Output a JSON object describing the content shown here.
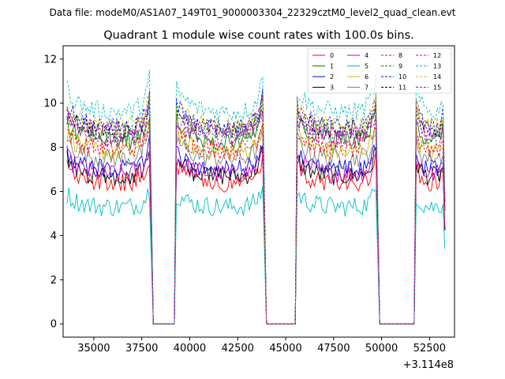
{
  "header": {
    "file_label": "Data file: modeM0/AS1A07_149T01_9000003304_22329cztM0_level2_quad_clean.evt"
  },
  "chart_data": {
    "type": "line",
    "title": "Quadrant 1 module wise count rates with 100.0s bins.",
    "xlabel": "",
    "ylabel": "",
    "x_offset_label": "+3.114e8",
    "xlim": [
      33400,
      53800
    ],
    "ylim": [
      -0.6,
      12.6
    ],
    "x_ticks": [
      35000,
      37500,
      40000,
      42500,
      45000,
      47500,
      50000,
      52500
    ],
    "x_tick_labels": [
      "35000",
      "37500",
      "40000",
      "42500",
      "45000",
      "47500",
      "50000",
      "52500"
    ],
    "y_ticks": [
      0,
      2,
      4,
      6,
      8,
      10,
      12
    ],
    "y_tick_labels": [
      "0",
      "2",
      "4",
      "6",
      "8",
      "10",
      "12"
    ],
    "grid": false,
    "legend_position": "top-right",
    "bin_size_s": 100,
    "segments": [
      {
        "start": 33600,
        "end": 37900
      },
      {
        "start": 39300,
        "end": 43800
      },
      {
        "start": 45600,
        "end": 49700
      },
      {
        "start": 51800,
        "end": 53300
      }
    ],
    "gaps": [
      {
        "start": 38200,
        "end": 39200
      },
      {
        "start": 44000,
        "end": 45500
      },
      {
        "start": 49800,
        "end": 51700
      }
    ],
    "series": [
      {
        "name": "0",
        "color": "#ff0000",
        "style": "solid",
        "mean_level": 6.4
      },
      {
        "name": "1",
        "color": "#008000",
        "style": "solid",
        "mean_level": 8.3
      },
      {
        "name": "2",
        "color": "#0000ff",
        "style": "solid",
        "mean_level": 7.0
      },
      {
        "name": "3",
        "color": "#000000",
        "style": "solid",
        "mean_level": 6.7
      },
      {
        "name": "4",
        "color": "#bf00bf",
        "style": "solid",
        "mean_level": 6.8
      },
      {
        "name": "5",
        "color": "#00bfbf",
        "style": "solid",
        "mean_level": 5.3
      },
      {
        "name": "6",
        "color": "#bfbf00",
        "style": "solid",
        "mean_level": 7.8
      },
      {
        "name": "7",
        "color": "#808080",
        "style": "solid",
        "mean_level": 7.5
      },
      {
        "name": "8",
        "color": "#ff0000",
        "style": "dashed",
        "mean_level": 7.9
      },
      {
        "name": "9",
        "color": "#008000",
        "style": "dashed",
        "mean_level": 8.6
      },
      {
        "name": "10",
        "color": "#0000ff",
        "style": "dashed",
        "mean_level": 8.9
      },
      {
        "name": "11",
        "color": "#000000",
        "style": "dashed",
        "mean_level": 8.8
      },
      {
        "name": "12",
        "color": "#bf00bf",
        "style": "dashed",
        "mean_level": 8.7
      },
      {
        "name": "13",
        "color": "#00bfbf",
        "style": "dashed",
        "mean_level": 9.6
      },
      {
        "name": "14",
        "color": "#bfbf00",
        "style": "dashed",
        "mean_level": 8.9
      },
      {
        "name": "15",
        "color": "#bf00bf",
        "style": "dashed",
        "mean_level": 8.4
      }
    ]
  }
}
